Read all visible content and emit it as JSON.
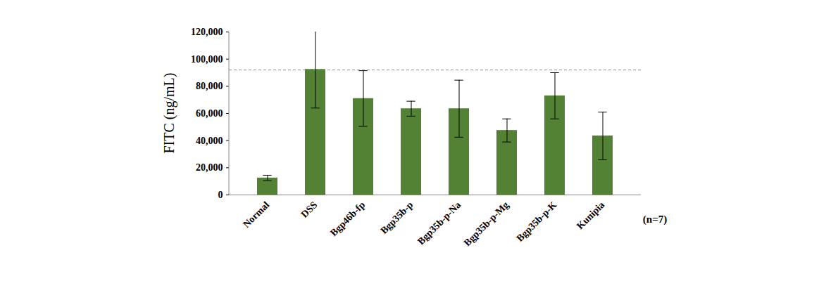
{
  "chart_data": {
    "type": "bar",
    "categories": [
      "Normal",
      "DSS",
      "Bgp46b-fp",
      "Bgp35b-p",
      "Bgp35b-p-Na",
      "Bgp35b-p-Mg",
      "Bgp35b-p-K",
      "Kunipia"
    ],
    "values": [
      12500,
      92500,
      71000,
      63500,
      63500,
      47500,
      73000,
      43500
    ],
    "errors": [
      2000,
      28500,
      20500,
      5500,
      21000,
      8500,
      17000,
      17500
    ],
    "reference_line": 92000,
    "color": "#548235",
    "y_label": "FITC (ng/mL)",
    "annotations": [
      "(n=7)"
    ],
    "ylim": [
      0,
      120000
    ],
    "yticks": [
      0,
      {
        "value": 20000,
        "label": "20,000"
      },
      {
        "value": 40000,
        "label": "40,000"
      },
      {
        "value": 60000,
        "label": "60,000"
      },
      {
        "value": 80000,
        "label": "80,000"
      },
      {
        "value": 100000,
        "label": "100,000"
      },
      {
        "value": 120000,
        "label": "120,000"
      }
    ],
    "grid": false
  }
}
